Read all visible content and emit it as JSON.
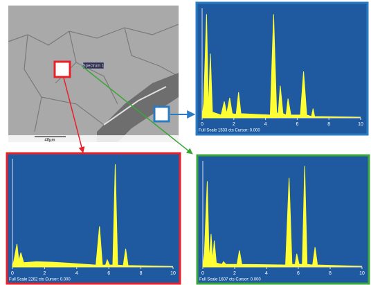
{
  "image": {
    "label": "Spectrum 1",
    "scale_bar": "40µm"
  },
  "chart_data": [
    {
      "type": "line",
      "footer": "Full Scale 1533 cts Cursor: 0.000",
      "color": "#ffff33",
      "x": [
        0,
        0.1,
        0.28,
        0.4,
        0.52,
        0.65,
        1.2,
        1.4,
        1.55,
        1.74,
        1.9,
        2.15,
        2.3,
        2.45,
        4.3,
        4.51,
        4.7,
        4.8,
        4.93,
        5.1,
        5.3,
        5.42,
        5.6,
        6.2,
        6.4,
        6.6,
        6.9,
        7.0,
        7.1,
        10
      ],
      "values": [
        0,
        200,
        1450,
        100,
        900,
        80,
        40,
        230,
        60,
        280,
        60,
        50,
        360,
        60,
        40,
        1450,
        80,
        50,
        450,
        60,
        40,
        270,
        40,
        40,
        650,
        40,
        20,
        130,
        20,
        10
      ],
      "xlim": [
        0,
        10
      ],
      "xticks": [
        0,
        2,
        4,
        6,
        8,
        10
      ],
      "ylim": [
        0,
        1533
      ]
    },
    {
      "type": "line",
      "footer": "Full Scale 2262 cts Cursor: 0.000",
      "color": "#ffff33",
      "x": [
        0,
        0.1,
        0.28,
        0.4,
        0.52,
        0.7,
        1.5,
        2.5,
        3.5,
        5.2,
        5.42,
        5.6,
        5.8,
        5.9,
        6.05,
        6.25,
        6.4,
        6.55,
        6.9,
        7.05,
        7.2,
        10
      ],
      "values": [
        0,
        150,
        480,
        120,
        300,
        90,
        110,
        100,
        80,
        40,
        850,
        40,
        40,
        150,
        40,
        40,
        2150,
        40,
        30,
        380,
        30,
        10
      ],
      "xlim": [
        0,
        10
      ],
      "xticks": [
        0,
        2,
        4,
        6,
        8,
        10
      ],
      "ylim": [
        0,
        2262
      ]
    },
    {
      "type": "line",
      "footer": "Full Scale 1607 cts Cursor: 0.000",
      "color": "#ffff33",
      "x": [
        0,
        0.1,
        0.28,
        0.4,
        0.52,
        0.62,
        0.72,
        0.85,
        1.2,
        1.3,
        1.45,
        2.15,
        2.3,
        2.45,
        5.2,
        5.42,
        5.6,
        5.8,
        5.9,
        6.05,
        6.25,
        6.4,
        6.55,
        6.9,
        7.05,
        7.2,
        10
      ],
      "values": [
        0,
        200,
        1300,
        100,
        500,
        90,
        400,
        60,
        40,
        80,
        40,
        40,
        250,
        40,
        30,
        1350,
        40,
        40,
        200,
        40,
        40,
        1530,
        40,
        30,
        300,
        30,
        10
      ],
      "xlim": [
        0,
        10
      ],
      "xticks": [
        0,
        2,
        4,
        6,
        8,
        10
      ],
      "ylim": [
        0,
        1607
      ]
    }
  ]
}
